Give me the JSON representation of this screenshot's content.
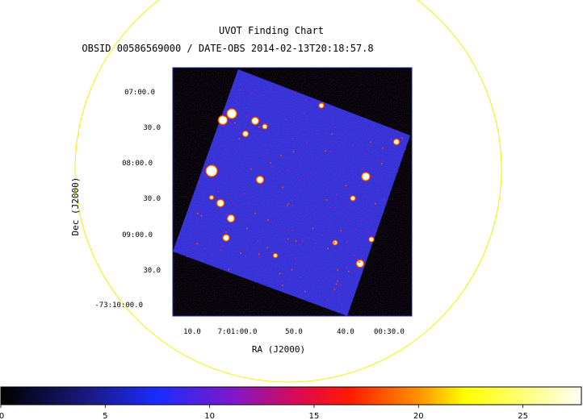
{
  "title": "UVOT Finding Chart",
  "subtitle": "OBSID 00586569000 / DATE-OBS 2014-02-13T20:18:57.8",
  "xlabel": "RA (J2000)",
  "ylabel": "Dec (J2000)",
  "dec_ticks": [
    "07:00.0",
    "30.0",
    "08:00.0",
    "30.0",
    "09:00.0",
    "30.0",
    "-73:10:00.0"
  ],
  "ra_ticks": [
    "10.0",
    "7:01:00.0",
    "50.0",
    "40.0",
    "00:30.0"
  ],
  "colorbar": {
    "ticks": [
      "0",
      "5",
      "10",
      "15",
      "20",
      "25"
    ],
    "range": [
      0,
      27.8
    ],
    "colormap": "hsv-like: black, blue, purple, red, orange, yellow, white"
  },
  "colors": {
    "circle": "#f2f200",
    "frame_border": "#2222aa",
    "background": "#000000",
    "field": "#3030d8"
  }
}
